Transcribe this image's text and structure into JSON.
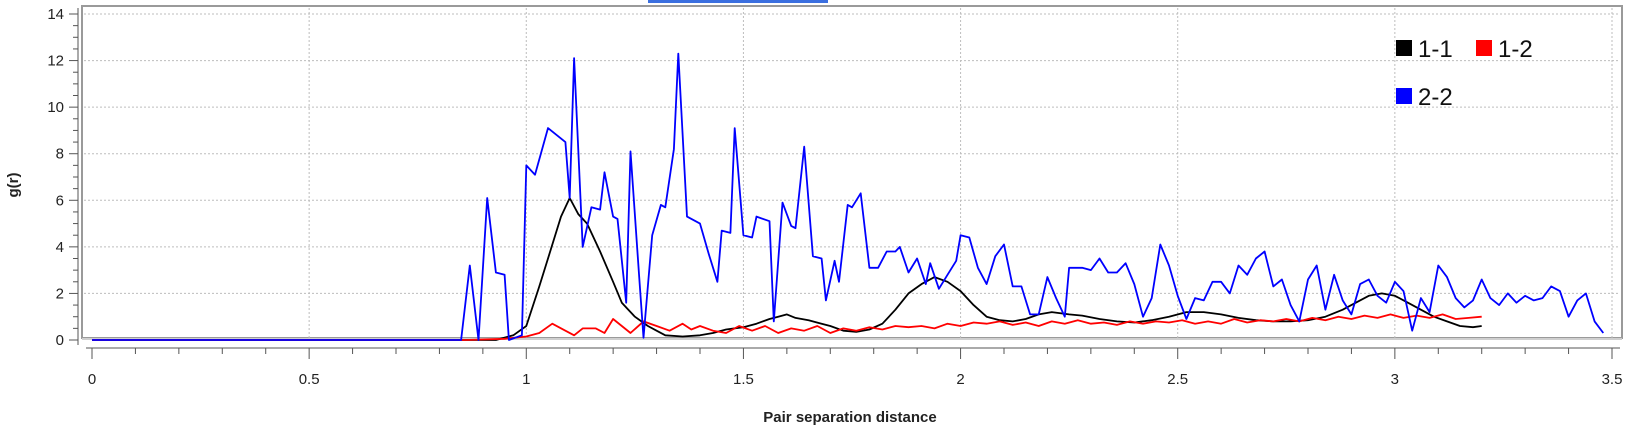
{
  "chart_data": {
    "type": "line",
    "xlabel": "Pair separation distance",
    "ylabel": "g(r)",
    "xlim": [
      0,
      3.5
    ],
    "ylim": [
      0,
      14
    ],
    "x_ticks": [
      "0",
      "0.5",
      "1",
      "1.5",
      "2",
      "2.5",
      "3",
      "3.5"
    ],
    "y_ticks": [
      "0",
      "2",
      "4",
      "6",
      "8",
      "10",
      "12",
      "14"
    ],
    "grid": true,
    "legend_position": "top-right",
    "series": [
      {
        "name": "1-1",
        "color": "#000000",
        "points": [
          [
            0,
            0
          ],
          [
            0.93,
            0
          ],
          [
            0.97,
            0.2
          ],
          [
            1.0,
            0.6
          ],
          [
            1.03,
            2.3
          ],
          [
            1.05,
            3.5
          ],
          [
            1.08,
            5.3
          ],
          [
            1.1,
            6.1
          ],
          [
            1.12,
            5.4
          ],
          [
            1.14,
            5.0
          ],
          [
            1.17,
            3.8
          ],
          [
            1.2,
            2.5
          ],
          [
            1.22,
            1.6
          ],
          [
            1.25,
            1.0
          ],
          [
            1.28,
            0.6
          ],
          [
            1.3,
            0.4
          ],
          [
            1.32,
            0.2
          ],
          [
            1.36,
            0.15
          ],
          [
            1.4,
            0.2
          ],
          [
            1.43,
            0.3
          ],
          [
            1.46,
            0.45
          ],
          [
            1.5,
            0.55
          ],
          [
            1.53,
            0.7
          ],
          [
            1.56,
            0.9
          ],
          [
            1.58,
            1.0
          ],
          [
            1.6,
            1.1
          ],
          [
            1.62,
            0.95
          ],
          [
            1.65,
            0.85
          ],
          [
            1.68,
            0.7
          ],
          [
            1.7,
            0.6
          ],
          [
            1.73,
            0.4
          ],
          [
            1.76,
            0.35
          ],
          [
            1.79,
            0.45
          ],
          [
            1.82,
            0.7
          ],
          [
            1.85,
            1.3
          ],
          [
            1.88,
            2.0
          ],
          [
            1.91,
            2.4
          ],
          [
            1.94,
            2.7
          ],
          [
            1.97,
            2.5
          ],
          [
            2.0,
            2.1
          ],
          [
            2.03,
            1.5
          ],
          [
            2.06,
            1.0
          ],
          [
            2.09,
            0.85
          ],
          [
            2.12,
            0.8
          ],
          [
            2.15,
            0.9
          ],
          [
            2.18,
            1.1
          ],
          [
            2.21,
            1.2
          ],
          [
            2.25,
            1.1
          ],
          [
            2.28,
            1.05
          ],
          [
            2.32,
            0.9
          ],
          [
            2.36,
            0.8
          ],
          [
            2.4,
            0.75
          ],
          [
            2.44,
            0.85
          ],
          [
            2.48,
            1.0
          ],
          [
            2.52,
            1.2
          ],
          [
            2.56,
            1.2
          ],
          [
            2.6,
            1.1
          ],
          [
            2.64,
            0.95
          ],
          [
            2.68,
            0.85
          ],
          [
            2.72,
            0.8
          ],
          [
            2.76,
            0.8
          ],
          [
            2.8,
            0.85
          ],
          [
            2.84,
            1.0
          ],
          [
            2.88,
            1.3
          ],
          [
            2.91,
            1.6
          ],
          [
            2.94,
            1.9
          ],
          [
            2.97,
            2.0
          ],
          [
            3.0,
            1.9
          ],
          [
            3.03,
            1.6
          ],
          [
            3.06,
            1.3
          ],
          [
            3.09,
            1.0
          ],
          [
            3.12,
            0.8
          ],
          [
            3.15,
            0.6
          ],
          [
            3.18,
            0.55
          ],
          [
            3.2,
            0.6
          ]
        ]
      },
      {
        "name": "1-2",
        "color": "#ff0000",
        "points": [
          [
            0,
            0
          ],
          [
            0.86,
            0
          ],
          [
            0.95,
            0.05
          ],
          [
            1.0,
            0.15
          ],
          [
            1.03,
            0.3
          ],
          [
            1.06,
            0.7
          ],
          [
            1.09,
            0.4
          ],
          [
            1.11,
            0.2
          ],
          [
            1.13,
            0.5
          ],
          [
            1.16,
            0.5
          ],
          [
            1.18,
            0.3
          ],
          [
            1.2,
            0.9
          ],
          [
            1.22,
            0.6
          ],
          [
            1.24,
            0.3
          ],
          [
            1.27,
            0.8
          ],
          [
            1.3,
            0.6
          ],
          [
            1.33,
            0.4
          ],
          [
            1.36,
            0.7
          ],
          [
            1.38,
            0.45
          ],
          [
            1.4,
            0.6
          ],
          [
            1.43,
            0.4
          ],
          [
            1.46,
            0.3
          ],
          [
            1.49,
            0.6
          ],
          [
            1.52,
            0.4
          ],
          [
            1.55,
            0.6
          ],
          [
            1.58,
            0.3
          ],
          [
            1.61,
            0.5
          ],
          [
            1.64,
            0.4
          ],
          [
            1.67,
            0.6
          ],
          [
            1.7,
            0.3
          ],
          [
            1.73,
            0.5
          ],
          [
            1.76,
            0.4
          ],
          [
            1.79,
            0.55
          ],
          [
            1.82,
            0.45
          ],
          [
            1.85,
            0.6
          ],
          [
            1.88,
            0.55
          ],
          [
            1.91,
            0.6
          ],
          [
            1.94,
            0.5
          ],
          [
            1.97,
            0.7
          ],
          [
            2.0,
            0.6
          ],
          [
            2.03,
            0.75
          ],
          [
            2.06,
            0.7
          ],
          [
            2.09,
            0.8
          ],
          [
            2.12,
            0.65
          ],
          [
            2.15,
            0.75
          ],
          [
            2.18,
            0.6
          ],
          [
            2.21,
            0.8
          ],
          [
            2.24,
            0.7
          ],
          [
            2.27,
            0.85
          ],
          [
            2.3,
            0.7
          ],
          [
            2.33,
            0.75
          ],
          [
            2.36,
            0.65
          ],
          [
            2.39,
            0.8
          ],
          [
            2.42,
            0.7
          ],
          [
            2.45,
            0.8
          ],
          [
            2.48,
            0.75
          ],
          [
            2.51,
            0.85
          ],
          [
            2.54,
            0.7
          ],
          [
            2.57,
            0.8
          ],
          [
            2.6,
            0.7
          ],
          [
            2.63,
            0.9
          ],
          [
            2.66,
            0.75
          ],
          [
            2.69,
            0.85
          ],
          [
            2.72,
            0.8
          ],
          [
            2.75,
            0.9
          ],
          [
            2.78,
            0.8
          ],
          [
            2.81,
            0.95
          ],
          [
            2.84,
            0.85
          ],
          [
            2.87,
            1.0
          ],
          [
            2.9,
            0.9
          ],
          [
            2.93,
            1.05
          ],
          [
            2.96,
            0.95
          ],
          [
            2.99,
            1.1
          ],
          [
            3.02,
            0.95
          ],
          [
            3.05,
            1.05
          ],
          [
            3.08,
            0.95
          ],
          [
            3.11,
            1.1
          ],
          [
            3.14,
            0.9
          ],
          [
            3.17,
            0.95
          ],
          [
            3.2,
            1.0
          ]
        ]
      },
      {
        "name": "2-2",
        "color": "#0000ff",
        "points": [
          [
            0,
            0
          ],
          [
            0.85,
            0
          ],
          [
            0.87,
            3.2
          ],
          [
            0.89,
            0
          ],
          [
            0.91,
            6.1
          ],
          [
            0.93,
            2.9
          ],
          [
            0.95,
            2.8
          ],
          [
            0.96,
            0
          ],
          [
            0.99,
            0.2
          ],
          [
            1.0,
            7.5
          ],
          [
            1.02,
            7.1
          ],
          [
            1.05,
            9.1
          ],
          [
            1.07,
            8.8
          ],
          [
            1.09,
            8.5
          ],
          [
            1.1,
            6.1
          ],
          [
            1.11,
            12.1
          ],
          [
            1.13,
            4.0
          ],
          [
            1.15,
            5.7
          ],
          [
            1.17,
            5.6
          ],
          [
            1.18,
            7.2
          ],
          [
            1.2,
            5.3
          ],
          [
            1.21,
            5.2
          ],
          [
            1.23,
            1.6
          ],
          [
            1.24,
            8.1
          ],
          [
            1.26,
            2.7
          ],
          [
            1.27,
            0.1
          ],
          [
            1.29,
            4.5
          ],
          [
            1.31,
            5.8
          ],
          [
            1.32,
            5.7
          ],
          [
            1.34,
            8.2
          ],
          [
            1.35,
            12.3
          ],
          [
            1.37,
            5.3
          ],
          [
            1.4,
            5.0
          ],
          [
            1.42,
            3.7
          ],
          [
            1.44,
            2.5
          ],
          [
            1.45,
            4.7
          ],
          [
            1.47,
            4.6
          ],
          [
            1.48,
            9.1
          ],
          [
            1.5,
            4.5
          ],
          [
            1.52,
            4.4
          ],
          [
            1.53,
            5.3
          ],
          [
            1.56,
            5.1
          ],
          [
            1.57,
            0.8
          ],
          [
            1.59,
            5.9
          ],
          [
            1.61,
            4.9
          ],
          [
            1.62,
            4.8
          ],
          [
            1.64,
            8.3
          ],
          [
            1.66,
            3.6
          ],
          [
            1.68,
            3.5
          ],
          [
            1.69,
            1.7
          ],
          [
            1.71,
            3.4
          ],
          [
            1.72,
            2.5
          ],
          [
            1.74,
            5.8
          ],
          [
            1.75,
            5.7
          ],
          [
            1.77,
            6.3
          ],
          [
            1.79,
            3.1
          ],
          [
            1.81,
            3.1
          ],
          [
            1.83,
            3.8
          ],
          [
            1.85,
            3.8
          ],
          [
            1.86,
            4.0
          ],
          [
            1.88,
            2.9
          ],
          [
            1.9,
            3.5
          ],
          [
            1.92,
            2.4
          ],
          [
            1.93,
            3.3
          ],
          [
            1.95,
            2.2
          ],
          [
            1.97,
            2.8
          ],
          [
            1.99,
            3.4
          ],
          [
            2.0,
            4.5
          ],
          [
            2.02,
            4.4
          ],
          [
            2.04,
            3.1
          ],
          [
            2.06,
            2.4
          ],
          [
            2.08,
            3.6
          ],
          [
            2.1,
            4.1
          ],
          [
            2.12,
            2.3
          ],
          [
            2.14,
            2.3
          ],
          [
            2.16,
            1.1
          ],
          [
            2.18,
            1.1
          ],
          [
            2.2,
            2.7
          ],
          [
            2.22,
            1.8
          ],
          [
            2.24,
            1.0
          ],
          [
            2.25,
            3.1
          ],
          [
            2.28,
            3.1
          ],
          [
            2.3,
            3.0
          ],
          [
            2.32,
            3.5
          ],
          [
            2.34,
            2.9
          ],
          [
            2.36,
            2.9
          ],
          [
            2.38,
            3.3
          ],
          [
            2.4,
            2.4
          ],
          [
            2.42,
            1.0
          ],
          [
            2.44,
            1.8
          ],
          [
            2.46,
            4.1
          ],
          [
            2.48,
            3.2
          ],
          [
            2.5,
            1.9
          ],
          [
            2.52,
            0.9
          ],
          [
            2.54,
            1.8
          ],
          [
            2.56,
            1.7
          ],
          [
            2.58,
            2.5
          ],
          [
            2.6,
            2.5
          ],
          [
            2.62,
            2.0
          ],
          [
            2.64,
            3.2
          ],
          [
            2.66,
            2.8
          ],
          [
            2.68,
            3.5
          ],
          [
            2.7,
            3.8
          ],
          [
            2.72,
            2.3
          ],
          [
            2.74,
            2.6
          ],
          [
            2.76,
            1.5
          ],
          [
            2.78,
            0.8
          ],
          [
            2.8,
            2.6
          ],
          [
            2.82,
            3.2
          ],
          [
            2.84,
            1.3
          ],
          [
            2.86,
            2.8
          ],
          [
            2.88,
            1.7
          ],
          [
            2.9,
            1.1
          ],
          [
            2.92,
            2.4
          ],
          [
            2.94,
            2.6
          ],
          [
            2.96,
            1.9
          ],
          [
            2.98,
            1.6
          ],
          [
            3.0,
            2.5
          ],
          [
            3.02,
            2.1
          ],
          [
            3.04,
            0.4
          ],
          [
            3.06,
            1.8
          ],
          [
            3.08,
            1.2
          ],
          [
            3.1,
            3.2
          ],
          [
            3.12,
            2.7
          ],
          [
            3.14,
            1.8
          ],
          [
            3.16,
            1.4
          ],
          [
            3.18,
            1.7
          ],
          [
            3.2,
            2.6
          ],
          [
            3.22,
            1.8
          ],
          [
            3.24,
            1.5
          ],
          [
            3.26,
            2.0
          ],
          [
            3.28,
            1.6
          ],
          [
            3.3,
            1.9
          ],
          [
            3.32,
            1.7
          ],
          [
            3.34,
            1.8
          ],
          [
            3.36,
            2.3
          ],
          [
            3.38,
            2.1
          ],
          [
            3.4,
            1.0
          ],
          [
            3.42,
            1.7
          ],
          [
            3.44,
            2.0
          ],
          [
            3.46,
            0.8
          ],
          [
            3.48,
            0.3
          ]
        ]
      }
    ]
  }
}
